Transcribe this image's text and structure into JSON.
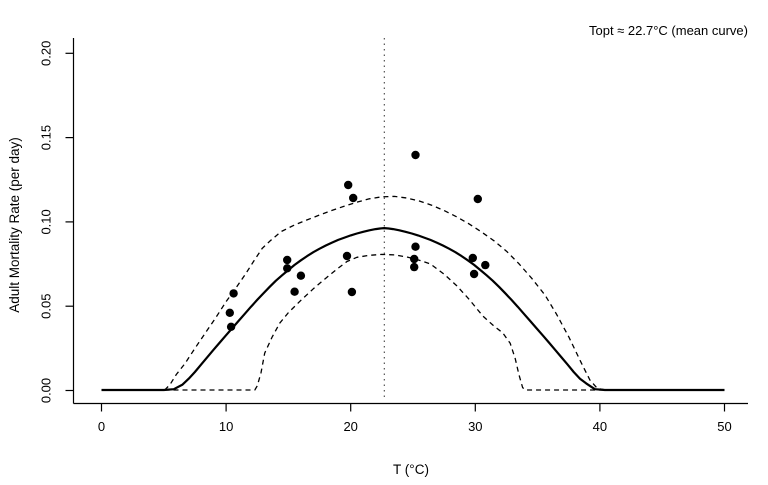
{
  "figure": {
    "background": "#ffffff",
    "foreground": "#000000"
  },
  "chart_data": {
    "type": "line",
    "title": "",
    "xlabel": "T (°C)",
    "ylabel": "Adult Mortality Rate (per day)",
    "xlim": [
      0,
      50
    ],
    "ylim": [
      0,
      0.2
    ],
    "x_ticks": [
      "0",
      "10",
      "20",
      "30",
      "40",
      "50"
    ],
    "x_tick_values": [
      0,
      10,
      20,
      30,
      40,
      50
    ],
    "y_ticks": [
      "0.00",
      "0.05",
      "0.10",
      "0.15",
      "0.20"
    ],
    "y_tick_values": [
      0,
      0.05,
      0.1,
      0.15,
      0.2
    ],
    "grid": false,
    "legend": "none",
    "annotation": {
      "text": "Topt ≈ 22.7°C (mean curve)",
      "position": "top-right"
    },
    "vline": {
      "x": 22.7,
      "style": "dotted",
      "color": "#555555",
      "label": "Topt"
    },
    "series": [
      {
        "name": "mean curve",
        "style": "solid",
        "color": "#000000",
        "width": 2.2,
        "points": [
          [
            0,
            0.0003
          ],
          [
            5,
            0.0003
          ],
          [
            5.8,
            0.0008
          ],
          [
            6.5,
            0.0035
          ],
          [
            7,
            0.007
          ],
          [
            7.5,
            0.011
          ],
          [
            8,
            0.0155
          ],
          [
            8.5,
            0.0198
          ],
          [
            9,
            0.0242
          ],
          [
            9.5,
            0.0285
          ],
          [
            10,
            0.0328
          ],
          [
            10.5,
            0.037
          ],
          [
            11,
            0.0413
          ],
          [
            11.5,
            0.0455
          ],
          [
            12,
            0.0497
          ],
          [
            12.5,
            0.0538
          ],
          [
            13,
            0.0577
          ],
          [
            13.5,
            0.0615
          ],
          [
            14,
            0.0651
          ],
          [
            14.5,
            0.0684
          ],
          [
            15,
            0.0715
          ],
          [
            15.5,
            0.0745
          ],
          [
            16,
            0.0772
          ],
          [
            16.5,
            0.0797
          ],
          [
            17,
            0.082
          ],
          [
            17.5,
            0.0841
          ],
          [
            18,
            0.086
          ],
          [
            18.5,
            0.0877
          ],
          [
            19,
            0.0893
          ],
          [
            19.5,
            0.0907
          ],
          [
            20,
            0.092
          ],
          [
            20.5,
            0.0931
          ],
          [
            21,
            0.0941
          ],
          [
            21.5,
            0.095
          ],
          [
            22,
            0.0957
          ],
          [
            22.35,
            0.0961
          ],
          [
            22.7,
            0.0963
          ],
          [
            23.05,
            0.0961
          ],
          [
            23.4,
            0.0957
          ],
          [
            23.9,
            0.095
          ],
          [
            24.4,
            0.0941
          ],
          [
            24.9,
            0.0931
          ],
          [
            25.4,
            0.092
          ],
          [
            25.9,
            0.0907
          ],
          [
            26.4,
            0.0893
          ],
          [
            26.9,
            0.0877
          ],
          [
            27.4,
            0.086
          ],
          [
            27.9,
            0.0841
          ],
          [
            28.4,
            0.082
          ],
          [
            28.9,
            0.0797
          ],
          [
            29.4,
            0.0772
          ],
          [
            29.9,
            0.0745
          ],
          [
            30.4,
            0.0715
          ],
          [
            30.9,
            0.0684
          ],
          [
            31.4,
            0.0651
          ],
          [
            31.9,
            0.0615
          ],
          [
            32.4,
            0.0577
          ],
          [
            32.9,
            0.0538
          ],
          [
            33.4,
            0.0497
          ],
          [
            33.9,
            0.0455
          ],
          [
            34.4,
            0.0413
          ],
          [
            34.9,
            0.037
          ],
          [
            35.4,
            0.0328
          ],
          [
            35.9,
            0.0285
          ],
          [
            36.4,
            0.0242
          ],
          [
            36.9,
            0.0198
          ],
          [
            37.4,
            0.0155
          ],
          [
            37.9,
            0.011
          ],
          [
            38.4,
            0.007
          ],
          [
            38.9,
            0.0042
          ],
          [
            39.6,
            0.0008
          ],
          [
            40.4,
            0.0003
          ],
          [
            50,
            0.0003
          ]
        ]
      },
      {
        "name": "upper confidence band",
        "style": "dashed",
        "color": "#000000",
        "width": 1.3,
        "points": [
          [
            0,
            0.0003
          ],
          [
            5.1,
            0.0005
          ],
          [
            5.5,
            0.0035
          ],
          [
            6,
            0.0095
          ],
          [
            6.7,
            0.016
          ],
          [
            7.5,
            0.025
          ],
          [
            8.4,
            0.0349
          ],
          [
            9.2,
            0.0435
          ],
          [
            10,
            0.0527
          ],
          [
            10.8,
            0.061
          ],
          [
            11.6,
            0.0695
          ],
          [
            12.2,
            0.0765
          ],
          [
            12.9,
            0.0843
          ],
          [
            13.5,
            0.0885
          ],
          [
            14.4,
            0.0942
          ],
          [
            15.5,
            0.0982
          ],
          [
            16.5,
            0.1012
          ],
          [
            17.5,
            0.1041
          ],
          [
            18.5,
            0.1068
          ],
          [
            19.5,
            0.1094
          ],
          [
            20.5,
            0.1117
          ],
          [
            21.5,
            0.1137
          ],
          [
            22.5,
            0.1149
          ],
          [
            23.5,
            0.1151
          ],
          [
            24.5,
            0.1142
          ],
          [
            25.5,
            0.1124
          ],
          [
            26.5,
            0.1099
          ],
          [
            27.5,
            0.1067
          ],
          [
            28.5,
            0.103
          ],
          [
            29.5,
            0.0988
          ],
          [
            30.5,
            0.094
          ],
          [
            31.5,
            0.0888
          ],
          [
            32.5,
            0.0826
          ],
          [
            33.5,
            0.0752
          ],
          [
            34.5,
            0.0668
          ],
          [
            35.6,
            0.0565
          ],
          [
            36.5,
            0.0455
          ],
          [
            37.5,
            0.0318
          ],
          [
            38.5,
            0.0165
          ],
          [
            39.2,
            0.0062
          ],
          [
            39.8,
            0.0012
          ],
          [
            40.5,
            0.0003
          ],
          [
            50,
            0.0003
          ]
        ]
      },
      {
        "name": "lower confidence band",
        "style": "dashed",
        "color": "#000000",
        "width": 1.3,
        "points": [
          [
            0,
            0.0003
          ],
          [
            12.3,
            0.0003
          ],
          [
            12.5,
            0.0028
          ],
          [
            12.8,
            0.0105
          ],
          [
            13.1,
            0.0222
          ],
          [
            13.7,
            0.0318
          ],
          [
            14.3,
            0.0399
          ],
          [
            15,
            0.0462
          ],
          [
            16,
            0.0535
          ],
          [
            17,
            0.0603
          ],
          [
            18,
            0.0666
          ],
          [
            19,
            0.0726
          ],
          [
            19.7,
            0.0765
          ],
          [
            20.5,
            0.079
          ],
          [
            21.5,
            0.0802
          ],
          [
            22.5,
            0.0807
          ],
          [
            23.5,
            0.0804
          ],
          [
            24.5,
            0.0792
          ],
          [
            25.5,
            0.0773
          ],
          [
            26.4,
            0.0751
          ],
          [
            27.5,
            0.0689
          ],
          [
            28.5,
            0.0622
          ],
          [
            29.5,
            0.0541
          ],
          [
            30.6,
            0.0442
          ],
          [
            31.5,
            0.0382
          ],
          [
            32.2,
            0.0342
          ],
          [
            32.8,
            0.028
          ],
          [
            33.2,
            0.019
          ],
          [
            33.5,
            0.0095
          ],
          [
            33.8,
            0.0018
          ],
          [
            34,
            0.0003
          ],
          [
            50,
            0.0003
          ]
        ]
      }
    ],
    "scatter": {
      "name": "observed adult mortality",
      "marker": "filled-circle",
      "color": "#000000",
      "radius": 4.2,
      "points": [
        [
          10.6,
          0.0576
        ],
        [
          10.3,
          0.0461
        ],
        [
          10.4,
          0.0378
        ],
        [
          14.9,
          0.0774
        ],
        [
          14.9,
          0.0725
        ],
        [
          16.0,
          0.0681
        ],
        [
          15.5,
          0.0586
        ],
        [
          19.8,
          0.1219
        ],
        [
          20.2,
          0.1142
        ],
        [
          19.7,
          0.0798
        ],
        [
          20.1,
          0.0584
        ],
        [
          25.2,
          0.1397
        ],
        [
          25.2,
          0.0853
        ],
        [
          25.1,
          0.078
        ],
        [
          25.1,
          0.0732
        ],
        [
          30.2,
          0.1136
        ],
        [
          29.8,
          0.0786
        ],
        [
          30.8,
          0.0744
        ],
        [
          29.9,
          0.0691
        ]
      ]
    }
  }
}
